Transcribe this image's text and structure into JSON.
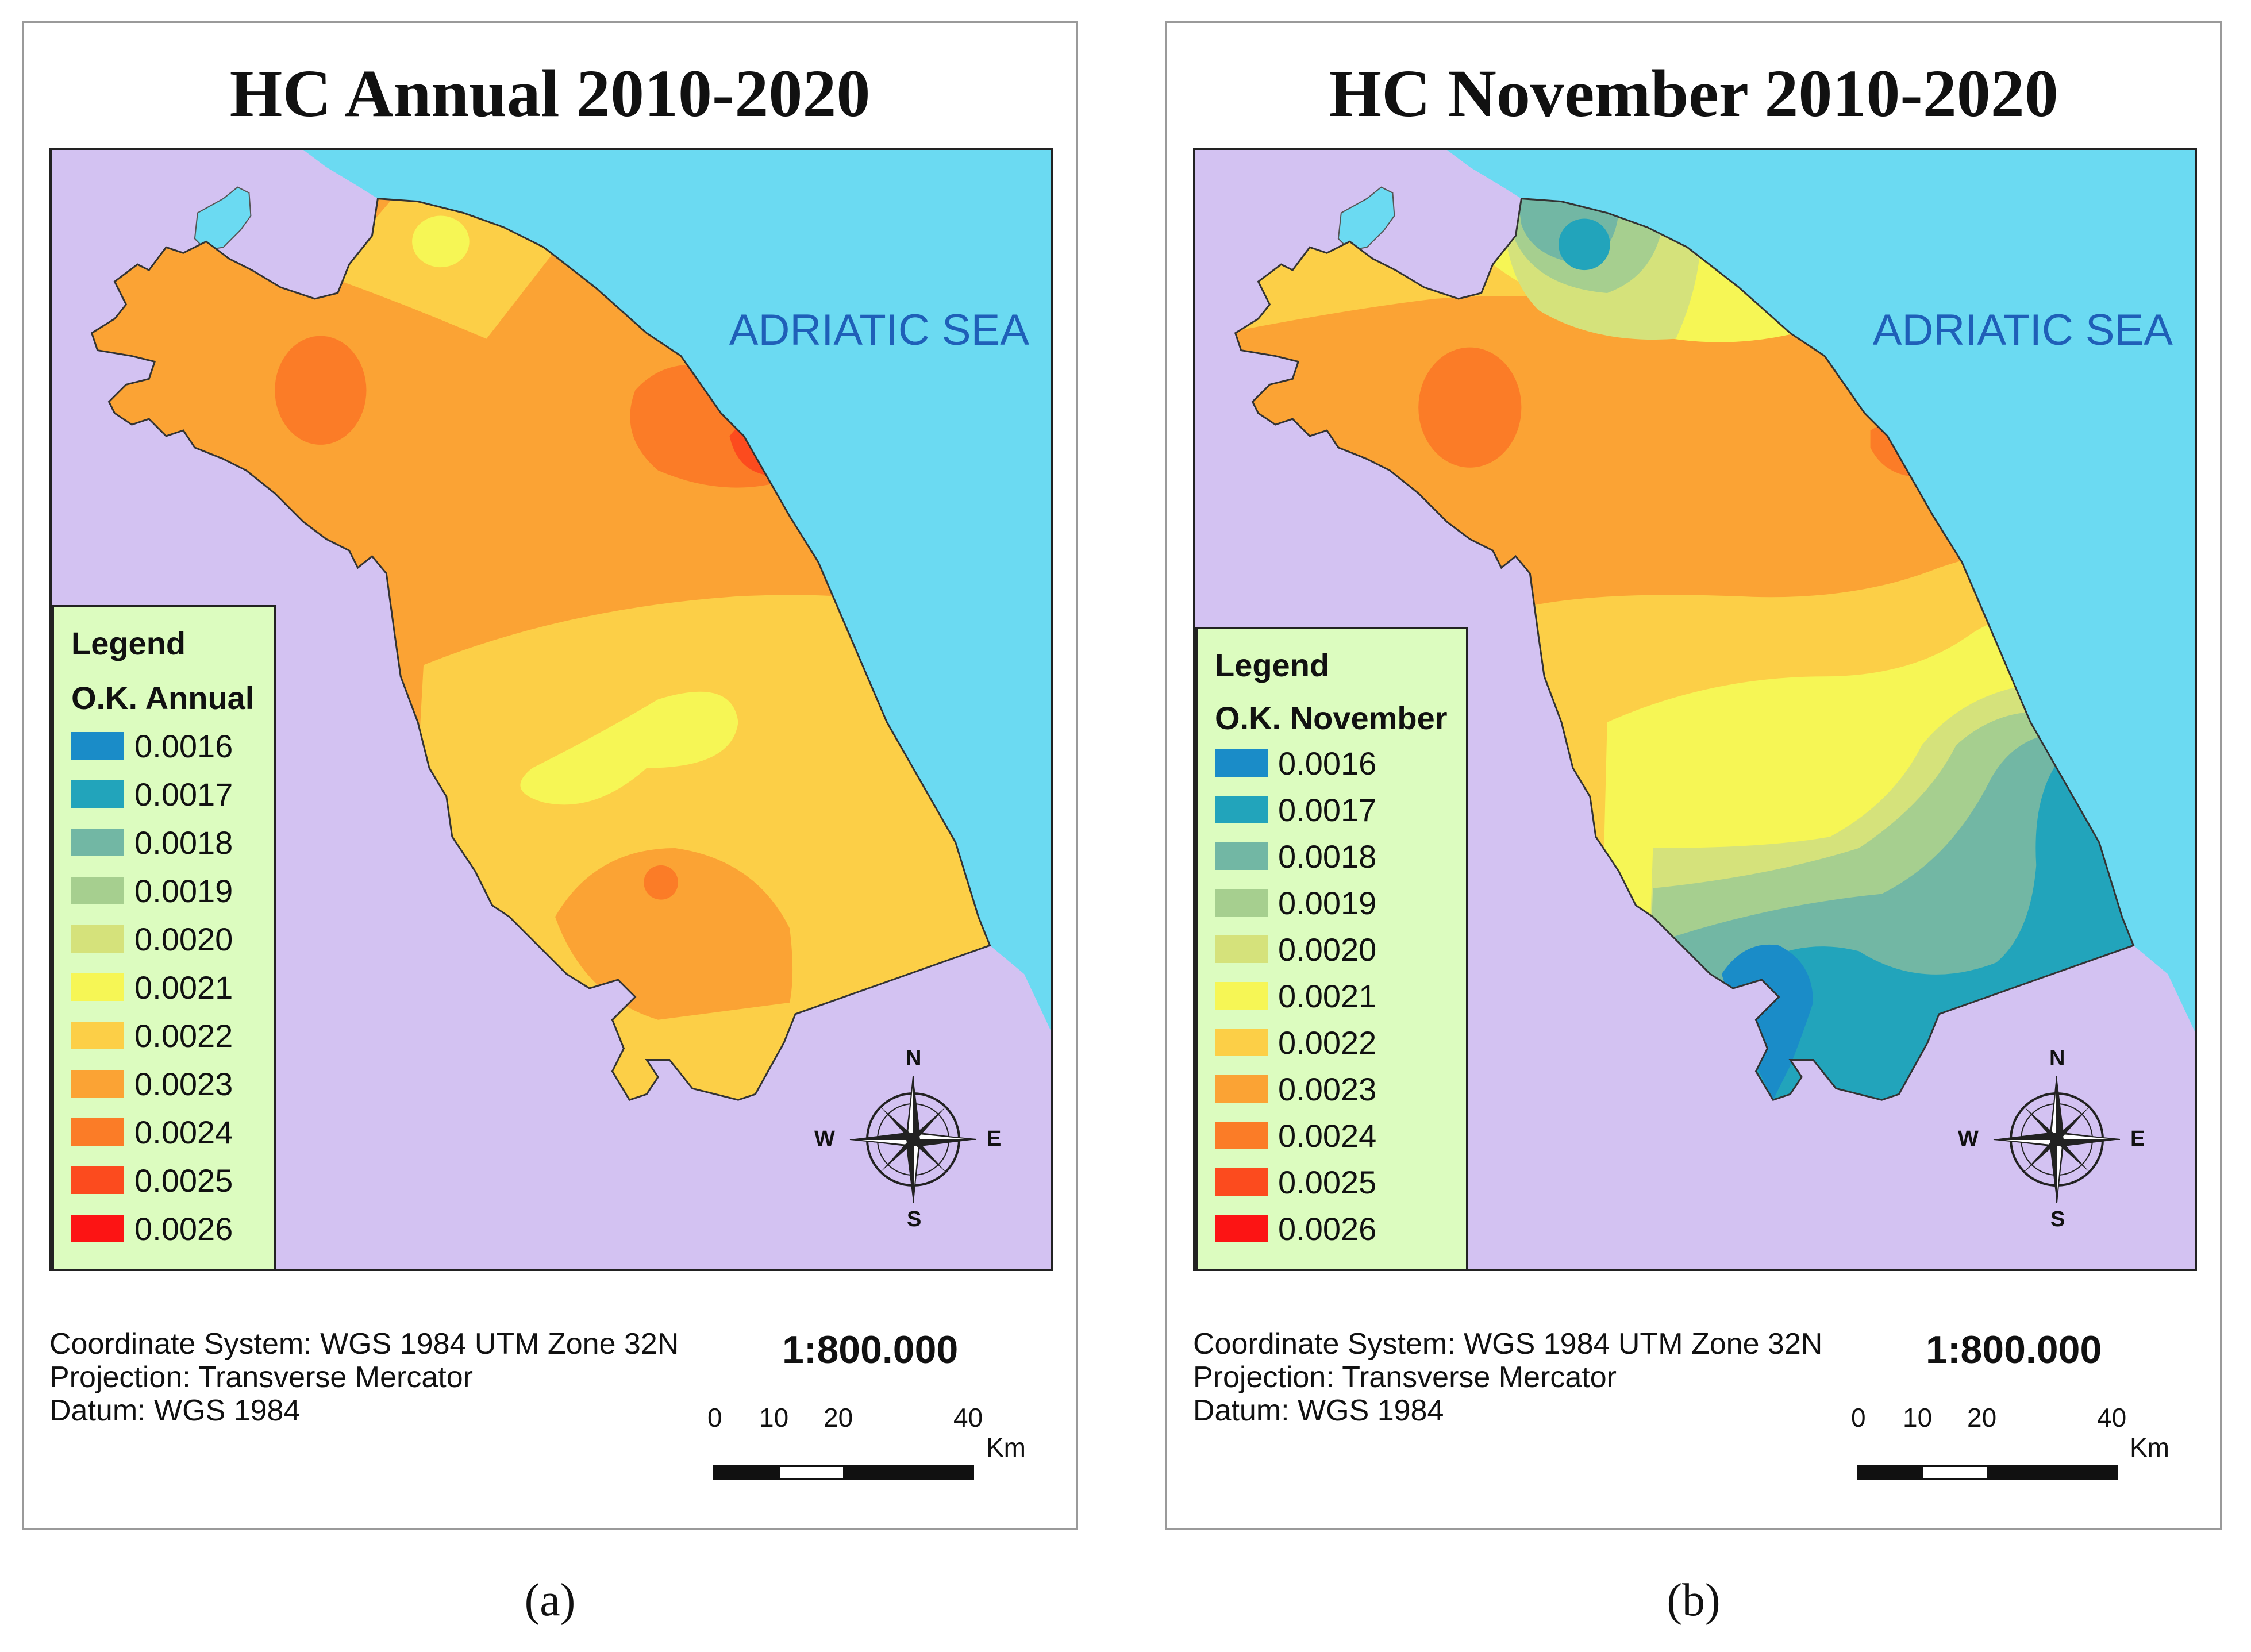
{
  "colors": {
    "land_bg": "#d3c2f2",
    "sea": "#6bdaf2",
    "legend_bg": "#dcfcbf",
    "sea_label": "#1f5fb8"
  },
  "legend_classes": [
    {
      "value": "0.0016",
      "color": "#1a8cc8"
    },
    {
      "value": "0.0017",
      "color": "#22a4bb"
    },
    {
      "value": "0.0018",
      "color": "#72b7a4"
    },
    {
      "value": "0.0019",
      "color": "#a6cf8f"
    },
    {
      "value": "0.0020",
      "color": "#d5e27b"
    },
    {
      "value": "0.0021",
      "color": "#f6f655"
    },
    {
      "value": "0.0022",
      "color": "#fccf47"
    },
    {
      "value": "0.0023",
      "color": "#fba334"
    },
    {
      "value": "0.0024",
      "color": "#fb7c27"
    },
    {
      "value": "0.0025",
      "color": "#fc4b1e"
    },
    {
      "value": "0.0026",
      "color": "#fc1414"
    }
  ],
  "panels": [
    {
      "title": "HC Annual 2010-2020",
      "sea_label": "ADRIATIC SEA",
      "legend_title": "Legend",
      "legend_subtitle": "O.K. Annual",
      "coordinate_system": "Coordinate System: WGS 1984 UTM Zone 32N",
      "projection": "Projection: Transverse Mercator",
      "datum": "Datum: WGS 1984",
      "scale": "1:800.000",
      "scale_ticks": [
        "0",
        "10",
        "20",
        "40"
      ],
      "scale_unit": "Km",
      "compass": {
        "n": "N",
        "s": "S",
        "e": "E",
        "w": "W"
      },
      "caption": "(a)"
    },
    {
      "title": "HC November 2010-2020",
      "sea_label": "ADRIATIC SEA",
      "legend_title": "Legend",
      "legend_subtitle": "O.K. November",
      "coordinate_system": "Coordinate System: WGS 1984 UTM Zone 32N",
      "projection": "Projection: Transverse Mercator",
      "datum": "Datum: WGS 1984",
      "scale": "1:800.000",
      "scale_ticks": [
        "0",
        "10",
        "20",
        "40"
      ],
      "scale_unit": "Km",
      "compass": {
        "n": "N",
        "s": "S",
        "e": "E",
        "w": "W"
      },
      "caption": "(b)"
    }
  ]
}
